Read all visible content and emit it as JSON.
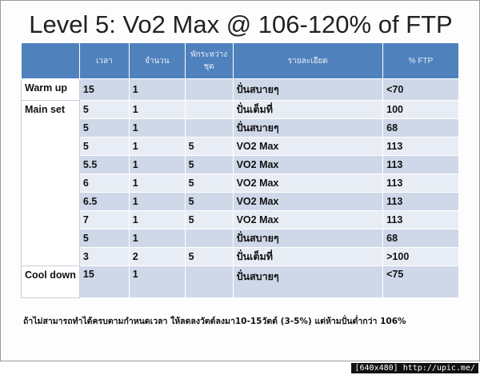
{
  "title": "Level 5: Vo2 Max @ 106-120% of FTP",
  "table": {
    "header": [
      null,
      "เวลา",
      "จำนวน",
      "พักระหว่างชุด",
      "รายละเอียด",
      "% FTP"
    ],
    "rows": [
      [
        "Warm up",
        "15",
        "1",
        null,
        "ปั่นสบายๆ",
        "<70"
      ],
      [
        "Main set",
        "5",
        "1",
        null,
        "ปั่นเต็มที่",
        "100"
      ],
      [
        null,
        "5",
        "1",
        null,
        "ปั่นสบายๆ",
        "68"
      ],
      [
        null,
        "5",
        "1",
        "5",
        "VO2 Max",
        "113"
      ],
      [
        null,
        "5.5",
        "1",
        "5",
        "VO2 Max",
        "113"
      ],
      [
        null,
        "6",
        "1",
        "5",
        "VO2 Max",
        "113"
      ],
      [
        null,
        "6.5",
        "1",
        "5",
        "VO2 Max",
        "113"
      ],
      [
        null,
        "7",
        "1",
        "5",
        "VO2 Max",
        "113"
      ],
      [
        null,
        "5",
        "1",
        null,
        "ปั่นสบายๆ",
        "68"
      ],
      [
        null,
        "3",
        "2",
        "5",
        "ปั่นเต็มที่",
        ">100"
      ],
      [
        "Cool down",
        "15",
        "1",
        null,
        "ปั่นสบายๆ",
        "<75"
      ]
    ]
  },
  "footnote": "ถ้าไม่สามารถทำได้ครบตามกำหนดเวลา ให้ลดลงวัตต์ลงมา10-15วัตต์ (3-5%) แต่ห้ามปั่นต่ำกว่า 106%",
  "watermark": "[640x480] http://upic.me/"
}
